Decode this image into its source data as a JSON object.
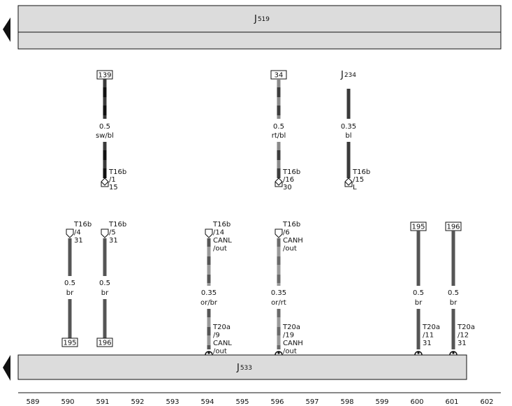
{
  "components": {
    "top": {
      "letter": "J",
      "number": "519"
    },
    "bottom": {
      "letter": "J",
      "number": "533"
    }
  },
  "upper_wires": [
    {
      "top": {
        "box": "139"
      },
      "gauge": "0.5",
      "color": "sw/bl",
      "stroke": [
        "#111111",
        "#3a3a3a"
      ],
      "bottom": {
        "pin": [
          "T16b",
          "/1",
          "15"
        ]
      }
    },
    {
      "top": {
        "box": "34"
      },
      "gauge": "0.5",
      "color": "rt/bl",
      "stroke": [
        "#3c3c3c",
        "#8a8a8a"
      ],
      "bottom": {
        "pin": [
          "T16b",
          "/16",
          "30"
        ]
      }
    },
    {
      "top": {
        "part": {
          "letter": "J",
          "number": "234"
        }
      },
      "gauge": "0.35",
      "color": "bl",
      "stroke": [
        "#3a3a3a",
        "#3a3a3a"
      ],
      "bottom": {
        "pin": [
          "T16b",
          "/15",
          "L"
        ]
      }
    }
  ],
  "lower_wires": [
    {
      "top": {
        "pin": [
          "T16b",
          "/4",
          "31"
        ]
      },
      "gauge": "0.5",
      "color": "br",
      "stroke": [
        "#555555",
        "#555555"
      ],
      "bottom": {
        "box": "195"
      }
    },
    {
      "top": {
        "pin": [
          "T16b",
          "/5",
          "31"
        ]
      },
      "gauge": "0.5",
      "color": "br",
      "stroke": [
        "#555555",
        "#555555"
      ],
      "bottom": {
        "box": "196"
      }
    },
    {
      "top": {
        "pin": [
          "T16b",
          "/14",
          "CANL",
          "/out"
        ]
      },
      "gauge": "0.35",
      "color": "or/br",
      "stroke": [
        "#999999",
        "#555555"
      ],
      "bottom": {
        "arch": [
          "T20a",
          "/9",
          "CANL",
          "/out"
        ]
      }
    },
    {
      "top": {
        "pin": [
          "T16b",
          "/6",
          "CANH",
          "/out"
        ]
      },
      "gauge": "0.35",
      "color": "or/rt",
      "stroke": [
        "#9a9a9a",
        "#6a6a6a"
      ],
      "bottom": {
        "arch": [
          "T20a",
          "/19",
          "CANH",
          "/out"
        ]
      }
    },
    {
      "top": {
        "box": "195"
      },
      "gauge": "0.5",
      "color": "br",
      "stroke": [
        "#555555",
        "#555555"
      ],
      "bottom": {
        "arch": [
          "T20a",
          "/11",
          "31"
        ]
      }
    },
    {
      "top": {
        "box": "196"
      },
      "gauge": "0.5",
      "color": "br",
      "stroke": [
        "#555555",
        "#555555"
      ],
      "bottom": {
        "arch": [
          "T20a",
          "/12",
          "31"
        ]
      }
    }
  ],
  "scale": [
    "589",
    "590",
    "591",
    "592",
    "593",
    "594",
    "595",
    "596",
    "597",
    "598",
    "599",
    "600",
    "601",
    "602"
  ]
}
